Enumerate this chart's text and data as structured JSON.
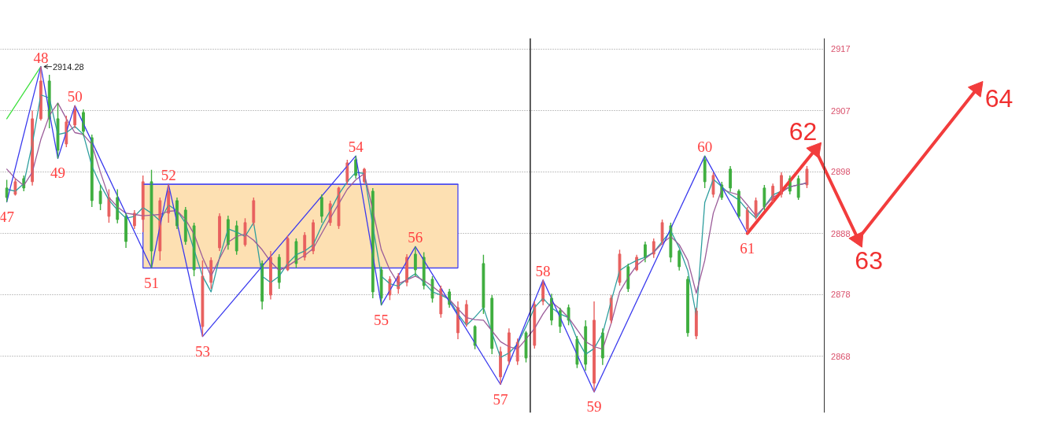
{
  "chart_data": {
    "type": "candlestick",
    "categories": [
      null,
      null,
      null,
      null,
      null,
      null,
      null,
      null,
      null,
      null,
      null,
      null,
      null,
      null,
      null,
      null,
      null,
      null,
      null,
      null,
      null,
      null,
      null,
      null,
      null,
      null,
      null,
      null,
      null,
      null,
      null,
      null,
      null,
      null,
      null,
      null,
      null,
      null,
      null,
      null,
      null,
      null,
      null,
      null,
      null,
      null,
      null,
      null,
      null,
      null,
      null,
      null,
      null,
      null,
      null,
      null,
      null,
      null,
      null,
      null,
      null,
      null,
      null,
      null,
      null,
      null,
      null,
      null,
      null,
      null,
      null,
      null,
      null,
      null,
      null,
      null,
      null,
      null,
      null,
      null,
      null,
      null,
      null,
      null,
      null,
      null,
      null,
      null,
      null,
      null,
      null,
      null,
      null,
      null,
      null,
      null,
      null,
      null,
      null,
      null,
      null,
      null,
      null,
      null,
      null,
      null,
      null,
      null,
      null,
      null,
      null,
      null,
      null,
      null,
      null,
      null,
      null,
      null,
      null
    ],
    "ohlc": [
      [
        2895,
        2896.3,
        2892.8,
        2893.5
      ],
      [
        2894,
        2896.5,
        2893.8,
        2896
      ],
      [
        2896.5,
        2897,
        2894.5,
        2895
      ],
      [
        2896,
        2907.3,
        2895.4,
        2906
      ],
      [
        2906,
        2914.28,
        2905.7,
        2912
      ],
      [
        2912,
        2913,
        2904.5,
        2906
      ],
      [
        2906,
        2908.5,
        2899.7,
        2901
      ],
      [
        2902,
        2906.5,
        2901.5,
        2905.5
      ],
      [
        2905,
        2908.1,
        2904.5,
        2907.5
      ],
      [
        2907,
        2907.5,
        2903.3,
        2904
      ],
      [
        2903,
        2903.5,
        2892,
        2893
      ],
      [
        2894.5,
        2895.5,
        2891.5,
        2892.5
      ],
      [
        2890.5,
        2894.8,
        2889.5,
        2893.5
      ],
      [
        2893.5,
        2894.8,
        2889.4,
        2890
      ],
      [
        2890.5,
        2891,
        2885.5,
        2886.5
      ],
      [
        2889,
        2891.5,
        2888.5,
        2891
      ],
      [
        2890,
        2897,
        2888,
        2896
      ],
      [
        2896,
        2897.9,
        2882.3,
        2885
      ],
      [
        2885,
        2893.5,
        2883.5,
        2893
      ],
      [
        2891,
        2895.6,
        2889.5,
        2894.5
      ],
      [
        2893,
        2893.5,
        2888.5,
        2889
      ],
      [
        2891.5,
        2892,
        2886,
        2886.5
      ],
      [
        2889,
        2889.5,
        2881,
        2882
      ],
      [
        2873,
        2883.5,
        2871.4,
        2881
      ],
      [
        2880,
        2884,
        2879,
        2883.5
      ],
      [
        2885.5,
        2891,
        2885,
        2890.5
      ],
      [
        2890,
        2890.6,
        2885.2,
        2886
      ],
      [
        2889,
        2889.8,
        2884.4,
        2885
      ],
      [
        2886,
        2890.2,
        2885.7,
        2889.5
      ],
      [
        2889.5,
        2893.5,
        2889,
        2893
      ],
      [
        2883,
        2883.5,
        2875.7,
        2877
      ],
      [
        2878,
        2885,
        2877.3,
        2884
      ],
      [
        2884,
        2884.5,
        2879,
        2880
      ],
      [
        2882,
        2887.5,
        2881.8,
        2887
      ],
      [
        2886.5,
        2887,
        2882.3,
        2883
      ],
      [
        2884,
        2888,
        2883.5,
        2887.5
      ],
      [
        2885,
        2890,
        2884.5,
        2889.5
      ],
      [
        2893.5,
        2894,
        2889.5,
        2890.5
      ],
      [
        2889.5,
        2893,
        2889,
        2892.5
      ],
      [
        2889,
        2895.2,
        2888.5,
        2895
      ],
      [
        2896,
        2899.5,
        2895.5,
        2899
      ],
      [
        2899.5,
        2900.1,
        2896.5,
        2897
      ],
      [
        2896,
        2898.2,
        2895.6,
        2898
      ],
      [
        2894.5,
        2895,
        2877.5,
        2878.5
      ],
      [
        2882,
        2882.5,
        2876.4,
        2877.5
      ],
      [
        2878,
        2881,
        2877.2,
        2880.5
      ],
      [
        2879,
        2881.5,
        2878.2,
        2881
      ],
      [
        2880,
        2884.5,
        2879.4,
        2884
      ],
      [
        2884.5,
        2885.7,
        2881,
        2882
      ],
      [
        2884,
        2884.8,
        2878.9,
        2879.5
      ],
      [
        2880.5,
        2881,
        2876.8,
        2877.5
      ],
      [
        2875,
        2879.5,
        2874.4,
        2879
      ],
      [
        2878.5,
        2879,
        2876,
        2876.5
      ],
      [
        2872,
        2877,
        2871,
        2876
      ],
      [
        2873.5,
        2877.2,
        2873,
        2876.5
      ],
      [
        2873,
        2873.2,
        2869.4,
        2870
      ],
      [
        2883,
        2884.4,
        2875,
        2876
      ],
      [
        2877.5,
        2878,
        2868.6,
        2869.5
      ],
      [
        2865,
        2869.8,
        2863.8,
        2869
      ],
      [
        2867.5,
        2872.7,
        2866.9,
        2872
      ],
      [
        2867.5,
        2871.1,
        2866.9,
        2870.5
      ],
      [
        2872,
        2872.3,
        2867.3,
        2868
      ],
      [
        2870,
        2877,
        2869.5,
        2876.5
      ],
      [
        2877,
        2880.4,
        2876.4,
        2880
      ],
      [
        2877.5,
        2878.2,
        2873.2,
        2874
      ],
      [
        2875.5,
        2876,
        2872,
        2873
      ],
      [
        2876,
        2876.5,
        2873.2,
        2874
      ],
      [
        2871,
        2871.5,
        2866.4,
        2867
      ],
      [
        2873,
        2874,
        2866,
        2867
      ],
      [
        2864,
        2877,
        2862.6,
        2874
      ],
      [
        2872,
        2872.7,
        2866.9,
        2868
      ],
      [
        2874,
        2878,
        2873.5,
        2877.5
      ],
      [
        2880,
        2885.2,
        2879.5,
        2884.5
      ],
      [
        2882.5,
        2883,
        2878.5,
        2879
      ],
      [
        2882,
        2884.4,
        2881.8,
        2884
      ],
      [
        2886,
        2886.5,
        2883.2,
        2884
      ],
      [
        2884.5,
        2887,
        2883.9,
        2886.5
      ],
      [
        2886.5,
        2890,
        2886,
        2889.5
      ],
      [
        2889,
        2889.5,
        2883.2,
        2884
      ],
      [
        2885,
        2885.2,
        2881.9,
        2882.5
      ],
      [
        2880.5,
        2881,
        2871.4,
        2872
      ],
      [
        2871.5,
        2876,
        2871,
        2875.5
      ],
      [
        2899.5,
        2900.1,
        2895,
        2896
      ],
      [
        2894,
        2897.5,
        2893.5,
        2897
      ],
      [
        2895.5,
        2896,
        2893.1,
        2893.5
      ],
      [
        2898,
        2898.5,
        2894.4,
        2895
      ],
      [
        2894.5,
        2894.8,
        2890.2,
        2890.5
      ],
      [
        2888.5,
        2892,
        2887.8,
        2891.5
      ],
      [
        2890.5,
        2893.5,
        2890,
        2893
      ],
      [
        2895,
        2895.5,
        2891.5,
        2892
      ],
      [
        2893,
        2895.7,
        2892.7,
        2895.3
      ],
      [
        2894,
        2897.5,
        2893.5,
        2897
      ],
      [
        2896.5,
        2897,
        2894,
        2894.5
      ],
      [
        2896.5,
        2897,
        2893.1,
        2893.5
      ],
      [
        2895.5,
        2898.5,
        2895,
        2898
      ],
      null,
      null,
      null,
      null,
      null,
      null,
      null,
      null,
      null,
      null,
      null,
      null,
      null,
      null,
      null,
      null,
      null,
      null,
      null,
      null,
      null,
      null,
      null,
      null
    ],
    "colors": [
      "#3fae3f",
      "#e8605f",
      "#3fae3f",
      "#e8605f",
      "#e8605f",
      "#3fae3f",
      "#3fae3f",
      "#e8605f",
      "#e8605f",
      "#3fae3f",
      "#3fae3f",
      "#3fae3f",
      "#e8605f",
      "#3fae3f",
      "#3fae3f",
      "#e8605f",
      "#e8605f",
      "#3fae3f",
      "#e8605f",
      "#e8605f",
      "#3fae3f",
      "#3fae3f",
      "#3fae3f",
      "#e8605f",
      "#e8605f",
      "#e8605f",
      "#3fae3f",
      "#3fae3f",
      "#e8605f",
      "#e8605f",
      "#3fae3f",
      "#e8605f",
      "#3fae3f",
      "#e8605f",
      "#3fae3f",
      "#e8605f",
      "#e8605f",
      "#3fae3f",
      "#e8605f",
      "#e8605f",
      "#e8605f",
      "#3fae3f",
      "#e8605f",
      "#3fae3f",
      "#3fae3f",
      "#e8605f",
      "#e8605f",
      "#e8605f",
      "#3fae3f",
      "#3fae3f",
      "#3fae3f",
      "#e8605f",
      "#3fae3f",
      "#e8605f",
      "#e8605f",
      "#3fae3f",
      "#3fae3f",
      "#3fae3f",
      "#e8605f",
      "#e8605f",
      "#e8605f",
      "#3fae3f",
      "#e8605f",
      "#e8605f",
      "#3fae3f",
      "#3fae3f",
      "#3fae3f",
      "#3fae3f",
      "#3fae3f",
      "#e8605f",
      "#3fae3f",
      "#e8605f",
      "#e8605f",
      "#3fae3f",
      "#e8605f",
      "#3fae3f",
      "#e8605f",
      "#e8605f",
      "#3fae3f",
      "#3fae3f",
      "#3fae3f",
      "#e8605f",
      "#3fae3f",
      "#e8605f",
      "#3fae3f",
      "#3fae3f",
      "#3fae3f",
      "#e8605f",
      "#e8605f",
      "#3fae3f",
      "#e8605f",
      "#e8605f",
      "#3fae3f",
      "#3fae3f",
      "#e8605f",
      null,
      null,
      null,
      null,
      null,
      null,
      null,
      null,
      null,
      null,
      null,
      null,
      null,
      null,
      null,
      null,
      null,
      null,
      null,
      null,
      null,
      null,
      null,
      null
    ],
    "series": [
      {
        "type": "line",
        "color": "#4646f0",
        "values": [
          null,
          null,
          null,
          null,
          null,
          null,
          null,
          null,
          null,
          null,
          null,
          null,
          null,
          null,
          null,
          null,
          2895.6,
          2895.6,
          2895.6,
          2895.6,
          2895.6,
          2895.6,
          2895.6,
          2895.6,
          2895.6,
          2895.6,
          2895.6,
          2895.6,
          2895.6,
          2895.6,
          2895.6,
          2895.6,
          2895.6,
          2895.6,
          2895.6,
          2895.6,
          2895.6,
          2895.6,
          2895.6,
          2895.6,
          2895.6,
          2895.6,
          2895.6,
          2895.6,
          2895.6,
          2895.6,
          2895.6,
          2895.6,
          2895.6,
          2895.6,
          2895.6,
          2895.6,
          2895.6,
          2895.6,
          null,
          null,
          null,
          null,
          null,
          null,
          null,
          null,
          null,
          null,
          null,
          null,
          null,
          null,
          null,
          null,
          null,
          null,
          null,
          null,
          null,
          null,
          null,
          null,
          null,
          null,
          null,
          null,
          null,
          null,
          null,
          null,
          null,
          null,
          null,
          null,
          null,
          null,
          null,
          null,
          null,
          null,
          null,
          null,
          null,
          null,
          null,
          null,
          null,
          null,
          null,
          null,
          null,
          null,
          null,
          null,
          null,
          null,
          null,
          null,
          null,
          null,
          null,
          null,
          null
        ],
        "upper": [
          null,
          null,
          null,
          null,
          null,
          null,
          null,
          null,
          null,
          null,
          null,
          null,
          null,
          null,
          null,
          null,
          2895.6,
          2895.6,
          2895.6,
          2895.6,
          2895.6,
          2895.6,
          2895.6,
          2895.6,
          2895.6,
          2895.6,
          2895.6,
          2895.6,
          2895.6,
          2895.6,
          2895.6,
          2895.6,
          2895.6,
          2895.6,
          2895.6,
          2895.6,
          2895.6,
          2895.6,
          2895.6,
          2895.6,
          2895.6,
          2895.6,
          2895.6,
          2895.6,
          2895.6,
          2895.6,
          2895.6,
          2895.6,
          2895.6,
          2895.6,
          2895.6,
          2895.6,
          2895.6,
          2895.6,
          null,
          null,
          null,
          null,
          null,
          null,
          null,
          null,
          null,
          null,
          null,
          null,
          null,
          null,
          null,
          null,
          null,
          null,
          null,
          null,
          null,
          null,
          null,
          null,
          null,
          null,
          null,
          null,
          null,
          null,
          null,
          null,
          null,
          null,
          null,
          null,
          null,
          null,
          null,
          null,
          null,
          null,
          null,
          null,
          null,
          null,
          null,
          null,
          null,
          null,
          null,
          null,
          null,
          null,
          null,
          null,
          null,
          null,
          null,
          null,
          null,
          null,
          null,
          null,
          null
        ],
        "lower": [
          null,
          null,
          null,
          null,
          null,
          null,
          null,
          null,
          null,
          null,
          null,
          null,
          null,
          null,
          null,
          null,
          2882.3,
          2882.3,
          2882.3,
          2882.3,
          2882.3,
          2882.3,
          2882.3,
          2882.3,
          2882.3,
          2882.3,
          2882.3,
          2882.3,
          2882.3,
          2882.3,
          2882.3,
          2882.3,
          2882.3,
          2882.3,
          2882.3,
          2882.3,
          2882.3,
          2882.3,
          2882.3,
          2882.3,
          2882.3,
          2882.3,
          2882.3,
          2882.3,
          2882.3,
          2882.3,
          2882.3,
          2882.3,
          2882.3,
          2882.3,
          2882.3,
          2882.3,
          2882.3,
          2882.3,
          null,
          null,
          null,
          null,
          null,
          null,
          null,
          null,
          null,
          null,
          null,
          null,
          null,
          null,
          null,
          null,
          null,
          null,
          null,
          null,
          null,
          null,
          null,
          null,
          null,
          null,
          null,
          null,
          null,
          null,
          null,
          null,
          null,
          null,
          null,
          null,
          null,
          null,
          null,
          null,
          null,
          null,
          null,
          null,
          null,
          null,
          null,
          null,
          null,
          null,
          null,
          null,
          null,
          null,
          null,
          null,
          null,
          null,
          null,
          null,
          null,
          null,
          null,
          null,
          null
        ]
      },
      {
        "type": "line",
        "color": "#2e9e9e",
        "values": [
          2894.8,
          2894.5,
          2895.7,
          2902,
          2909.8,
          2909.3,
          2903.5,
          2903.8,
          2904.8,
          2903.5,
          2898.5,
          2895.5,
          2893.1,
          2891.5,
          2890.2,
          2890.5,
          2891.9,
          2891,
          2889.8,
          2892.3,
          2891.4,
          2889.4,
          2885.2,
          2881,
          2878.5,
          2884,
          2888.5,
          2888,
          2887.3,
          2889.5,
          2881,
          2880,
          2881,
          2883,
          2884.4,
          2885,
          2886,
          2889,
          2891.4,
          2894,
          2896,
          2897.5,
          2897.3,
          2889,
          2881,
          2879.8,
          2879.4,
          2880.5,
          2881.4,
          2880,
          2878.5,
          2878,
          2877.3,
          2875,
          2873.2,
          2874.5,
          2876,
          2872,
          2868.1,
          2868.8,
          2870.2,
          2873,
          2876,
          2877.5,
          2876,
          2875,
          2874.4,
          2871,
          2868.6,
          2869.5,
          2871.9,
          2877,
          2881.9,
          2882.8,
          2883.5,
          2884,
          2884.8,
          2886.5,
          2888.2,
          2885.5,
          2881.9,
          2874.8,
          2892.7,
          2896.4,
          2895.2,
          2894,
          2893.1,
          2891.5,
          2890.2,
          2892,
          2893.9,
          2894.5,
          2895.2,
          2895.5,
          2895.8,
          null,
          null,
          null,
          null,
          null,
          null,
          null,
          null,
          null,
          null,
          null,
          null,
          null,
          null,
          null,
          null,
          null,
          null,
          null,
          null,
          null,
          null,
          null,
          null
        ]
      },
      {
        "type": "line",
        "color": "#9b5c99",
        "values": [
          2898,
          2896.5,
          2895.4,
          2897.5,
          2902.7,
          2906.5,
          2908.5,
          2906,
          2903.8,
          2903.5,
          2901.9,
          2897.5,
          2893.5,
          2892,
          2891,
          2890.8,
          2890.6,
          2890.7,
          2890.8,
          2891.3,
          2891.4,
          2890,
          2887.7,
          2884,
          2881,
          2883.8,
          2886.4,
          2887.3,
          2887.7,
          2886.7,
          2885.2,
          2883.3,
          2881.9,
          2882.6,
          2883.5,
          2884.3,
          2885.4,
          2887.8,
          2890.2,
          2892.5,
          2894.8,
          2896.3,
          2897.3,
          2891.5,
          2885.2,
          2882,
          2879.8,
          2880.4,
          2881,
          2880.3,
          2879.4,
          2878.3,
          2877.3,
          2875.8,
          2874.4,
          2874.1,
          2874,
          2872.3,
          2870.6,
          2869.8,
          2869.4,
          2871,
          2872.7,
          2875,
          2876.9,
          2875.8,
          2874.4,
          2872.5,
          2870.6,
          2869.8,
          2869.4,
          2873.5,
          2878.5,
          2880.8,
          2882.7,
          2883.8,
          2884.8,
          2886.2,
          2887.3,
          2886,
          2883.5,
          2878.3,
          2883.5,
          2891,
          2894.8,
          2894.3,
          2893.9,
          2892.3,
          2890.6,
          2892,
          2893.5,
          2894.3,
          2895.2,
          2895.5,
          2895.8,
          null,
          null,
          null,
          null,
          null,
          null,
          null,
          null,
          null,
          null,
          null,
          null,
          null,
          null,
          null,
          null,
          null,
          null,
          null,
          null,
          null,
          null,
          null,
          null
        ]
      },
      {
        "type": "line",
        "color": "#40e040",
        "values": [
          2906,
          null,
          null,
          null,
          2914.28,
          null,
          null,
          null,
          null,
          null,
          null,
          null,
          null,
          null,
          null,
          null,
          null,
          null,
          null,
          null,
          null,
          null,
          null,
          null,
          null,
          null,
          null,
          null,
          null,
          null,
          null,
          null,
          null,
          null,
          null,
          null,
          null,
          null,
          null,
          null,
          null,
          null,
          null,
          null,
          null,
          null,
          null,
          null,
          null,
          null,
          null,
          null,
          null,
          null,
          null,
          null,
          null,
          null,
          null,
          null,
          null,
          null,
          null,
          null,
          null,
          null,
          null,
          null,
          null,
          null,
          null,
          null,
          null,
          null,
          null,
          null,
          null,
          null,
          null,
          null,
          null,
          null,
          null,
          null,
          null,
          null,
          null,
          null,
          null,
          null,
          null,
          null,
          null,
          null,
          null,
          null,
          null,
          null,
          null,
          null,
          null,
          null,
          null,
          null,
          null,
          null,
          null,
          null,
          null,
          null,
          null,
          null,
          null,
          null,
          null,
          null,
          null,
          null,
          null
        ]
      },
      {
        "type": "line",
        "color": "#3a3aee",
        "values": [
          2892.8,
          null,
          null,
          null,
          2914.28,
          null,
          2899.7,
          null,
          2908.1,
          null,
          null,
          null,
          null,
          null,
          null,
          null,
          null,
          2882.3,
          null,
          2895.6,
          null,
          null,
          null,
          2871.4,
          null,
          null,
          null,
          null,
          null,
          null,
          null,
          null,
          null,
          null,
          null,
          null,
          null,
          null,
          null,
          null,
          null,
          2900.1,
          null,
          null,
          2876.4,
          null,
          null,
          null,
          2885.7,
          null,
          null,
          null,
          null,
          null,
          null,
          null,
          null,
          null,
          2863.8,
          null,
          null,
          null,
          null,
          2880.4,
          null,
          null,
          null,
          null,
          null,
          2862.6,
          null,
          null,
          null,
          null,
          null,
          null,
          null,
          null,
          null,
          null,
          null,
          null,
          2900.1,
          null,
          null,
          null,
          null,
          2887.8,
          null,
          null,
          null,
          null,
          null,
          null,
          null,
          null,
          null,
          null,
          null,
          null,
          null,
          null,
          null,
          null,
          null,
          null,
          null,
          null,
          null,
          null,
          null,
          null,
          null,
          null,
          null,
          null,
          null,
          null,
          null
        ]
      },
      {
        "type": "line",
        "color": "#f23c3c",
        "marker": "triangle",
        "values": [
          null,
          null,
          null,
          null,
          null,
          null,
          null,
          null,
          null,
          null,
          null,
          null,
          null,
          null,
          null,
          null,
          null,
          null,
          null,
          null,
          null,
          null,
          null,
          null,
          null,
          null,
          null,
          null,
          null,
          null,
          null,
          null,
          null,
          null,
          null,
          null,
          null,
          null,
          null,
          null,
          null,
          null,
          null,
          null,
          null,
          null,
          null,
          null,
          null,
          null,
          null,
          null,
          null,
          null,
          null,
          null,
          null,
          null,
          null,
          null,
          null,
          null,
          null,
          null,
          null,
          null,
          null,
          null,
          null,
          null,
          null,
          null,
          null,
          null,
          null,
          null,
          null,
          null,
          null,
          null,
          null,
          null,
          null,
          null,
          null,
          null,
          null,
          2887.8,
          null,
          null,
          null,
          null,
          null,
          null,
          null,
          2901.1,
          null,
          null,
          null,
          null,
          2886.9,
          null,
          null,
          null,
          null,
          null,
          null,
          null,
          null,
          null,
          null,
          null,
          null,
          null,
          2910.8,
          null,
          null,
          null,
          null
        ]
      }
    ],
    "ylim": [
      2859.3,
      2918.8
    ],
    "yticks": [
      {
        "value": 2868.3,
        "label": "2868"
      },
      {
        "value": 2878.1,
        "label": "2878"
      },
      {
        "value": 2887.8,
        "label": "2888"
      },
      {
        "value": 2897.6,
        "label": "2898"
      },
      {
        "value": 2907.3,
        "label": "2907"
      },
      {
        "value": 2917.1,
        "label": "2917"
      }
    ],
    "tick_labels": "y",
    "grid": "y",
    "annotations": [
      {
        "text": "47",
        "y": 2892.8
      },
      {
        "text": "48",
        "y": 2914.28
      },
      "2914.28",
      {
        "text": "49",
        "y": 2899.7
      },
      {
        "text": "50",
        "y": 2908.1
      },
      {
        "text": "51",
        "y": 2882.3
      },
      {
        "text": "52",
        "y": 2895.6
      },
      {
        "text": "53",
        "y": 2871.4
      },
      {
        "text": "54",
        "y": 2900.1
      },
      {
        "text": "55",
        "y": 2876.4
      },
      {
        "text": "56",
        "y": 2885.7
      },
      {
        "text": "57",
        "y": 2863.8
      },
      {
        "text": "58",
        "y": 2880.4
      },
      {
        "text": "59",
        "y": 2862.6
      },
      {
        "text": "60",
        "y": 2900.1
      },
      {
        "text": "61",
        "y": 2887.8
      },
      "62",
      "63",
      "64"
    ]
  }
}
